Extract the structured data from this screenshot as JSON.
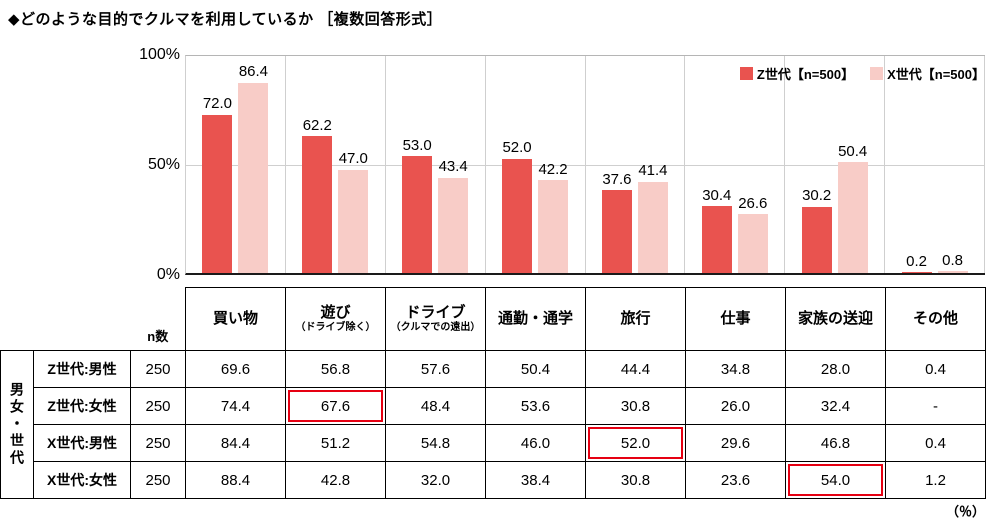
{
  "title": "◆どのような目的でクルマを利用しているか ［複数回答形式］",
  "percent_note": "（％）",
  "chart_data": {
    "type": "bar",
    "title": "どのような目的でクルマを利用しているか（複数回答形式）",
    "categories": [
      "買い物",
      "遊び",
      "ドライブ",
      "通勤・通学",
      "旅行",
      "仕事",
      "家族の送迎",
      "その他"
    ],
    "category_notes": [
      "",
      "（ドライブ除く）",
      "（クルマでの遠出）",
      "",
      "",
      "",
      "",
      ""
    ],
    "series": [
      {
        "name": "Z世代【n=500】",
        "color": "#e9534f",
        "values": [
          72.0,
          62.2,
          53.0,
          52.0,
          37.6,
          30.4,
          30.2,
          0.2
        ]
      },
      {
        "name": "X世代【n=500】",
        "color": "#f8ccc7",
        "values": [
          86.4,
          47.0,
          43.4,
          42.2,
          41.4,
          26.6,
          50.4,
          0.8
        ]
      }
    ],
    "ylim": [
      0,
      100
    ],
    "yticks": [
      "100%",
      "50%",
      "0%"
    ],
    "grid": "horizontal-and-vertical-light",
    "legend_position": "top-right"
  },
  "table": {
    "n_label": "n数",
    "axis_label": "男女・世代",
    "rows": [
      {
        "label": "Z世代:男性",
        "n": "250",
        "values": [
          "69.6",
          "56.8",
          "57.6",
          "50.4",
          "44.4",
          "34.8",
          "28.0",
          "0.4"
        ],
        "highlights": []
      },
      {
        "label": "Z世代:女性",
        "n": "250",
        "values": [
          "74.4",
          "67.6",
          "48.4",
          "53.6",
          "30.8",
          "26.0",
          "32.4",
          "-"
        ],
        "highlights": [
          1
        ]
      },
      {
        "label": "X世代:男性",
        "n": "250",
        "values": [
          "84.4",
          "51.2",
          "54.8",
          "46.0",
          "52.0",
          "29.6",
          "46.8",
          "0.4"
        ],
        "highlights": [
          4
        ]
      },
      {
        "label": "X世代:女性",
        "n": "250",
        "values": [
          "88.4",
          "42.8",
          "32.0",
          "38.4",
          "30.8",
          "23.6",
          "54.0",
          "1.2"
        ],
        "highlights": [
          6
        ]
      }
    ]
  }
}
